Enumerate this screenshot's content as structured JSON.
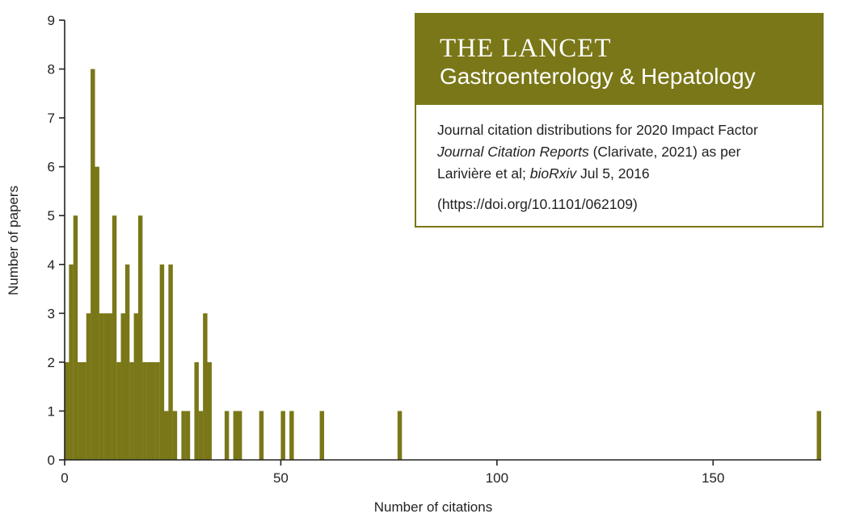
{
  "panel": {
    "title": "THE LANCET",
    "subtitle": "Gastroenterology & Hepatology",
    "line1": "Journal citation distributions for 2020 Impact Factor",
    "line2_italic": "Journal Citation Reports",
    "line2_rest": " (Clarivate, 2021) as per",
    "line3_prefix": "Larivière et al; ",
    "line3_italic": "bioRxiv",
    "line3_rest": " Jul 5, 2016",
    "doi": "(https://doi.org/10.1101/062109)"
  },
  "colors": {
    "bar": "#7a7718",
    "axis": "#222222"
  },
  "chart_data": {
    "type": "bar",
    "xlabel": "Number of citations",
    "ylabel": "Number of papers",
    "xlim": [
      0,
      175
    ],
    "ylim": [
      0,
      9
    ],
    "x_ticks": [
      0,
      50,
      100,
      150
    ],
    "y_ticks": [
      0,
      1,
      2,
      3,
      4,
      5,
      6,
      7,
      8,
      9
    ],
    "grid": false,
    "legend": "none",
    "x": [
      0,
      1,
      2,
      3,
      4,
      5,
      6,
      7,
      8,
      9,
      10,
      11,
      12,
      13,
      14,
      15,
      16,
      17,
      18,
      19,
      20,
      21,
      22,
      23,
      24,
      25,
      27,
      28,
      29,
      30,
      31,
      32,
      33,
      37,
      39,
      40,
      45,
      50,
      52,
      59,
      77,
      175
    ],
    "values": [
      2,
      4,
      5,
      2,
      2,
      3,
      8,
      6,
      3,
      3,
      3,
      5,
      2,
      3,
      4,
      2,
      3,
      5,
      2,
      2,
      2,
      2,
      4,
      1,
      4,
      1,
      1,
      1,
      0,
      2,
      1,
      3,
      2,
      1,
      1,
      1,
      1,
      1,
      1,
      1,
      1,
      1
    ]
  }
}
